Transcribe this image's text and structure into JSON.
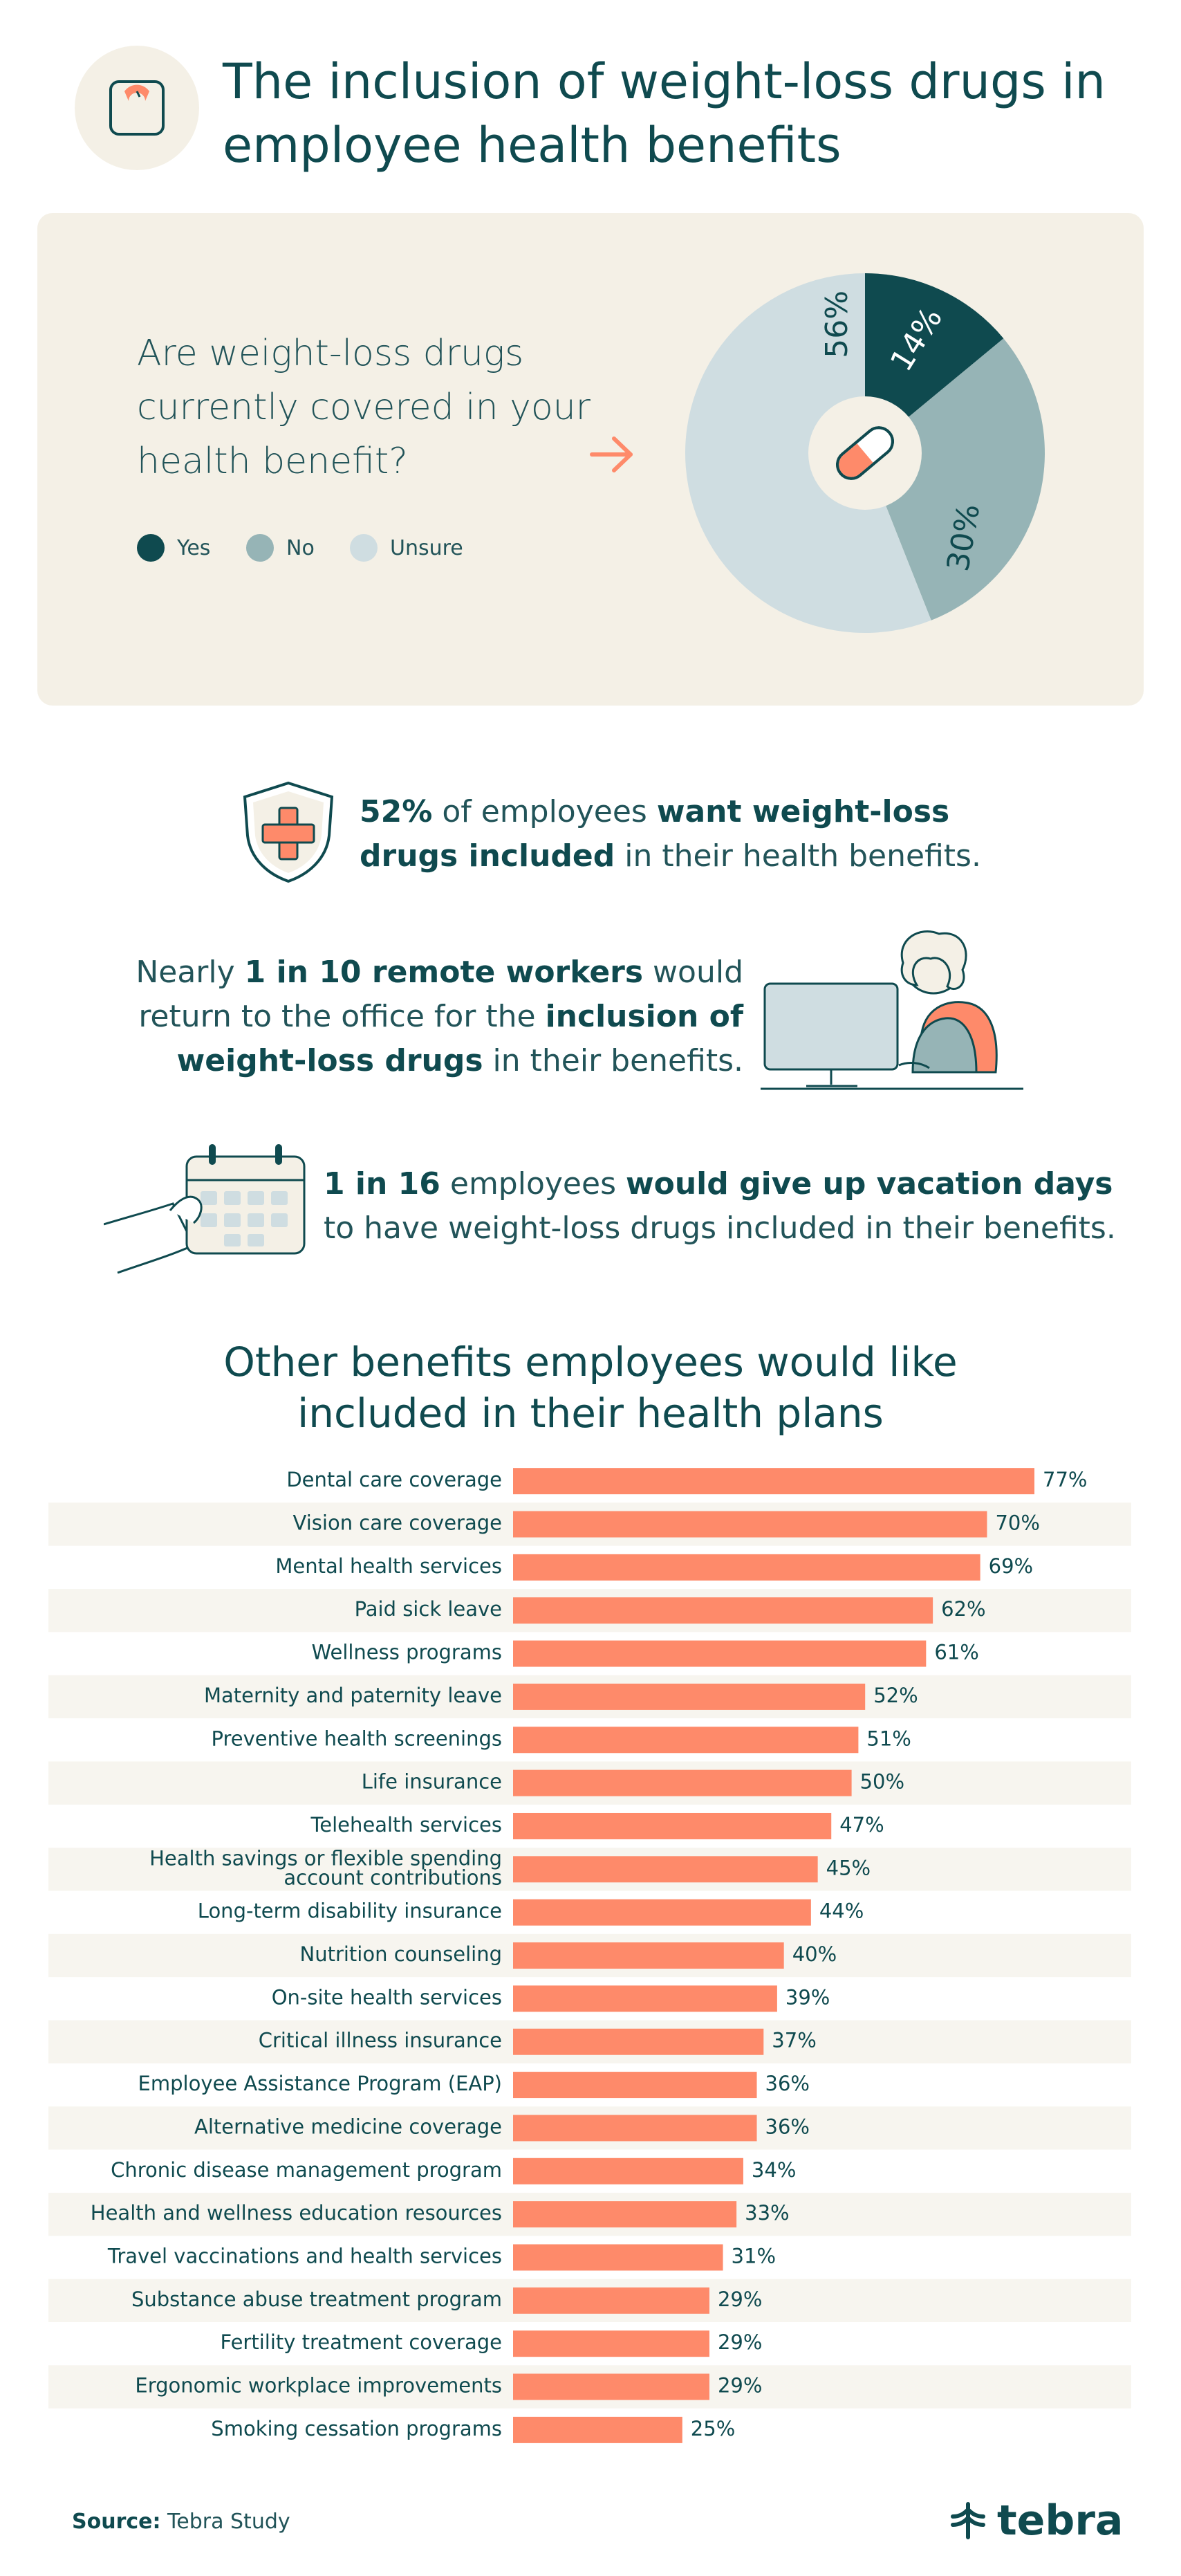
{
  "header": {
    "title": "The inclusion of weight-loss drugs in employee health benefits",
    "icon": "scale-icon"
  },
  "survey": {
    "question": "Are weight-loss drugs currently covered in your health benefit?",
    "legend": [
      {
        "label": "Yes",
        "color": "#0f4a4f"
      },
      {
        "label": "No",
        "color": "#96b4b6"
      },
      {
        "label": "Unsure",
        "color": "#cfdde1"
      }
    ]
  },
  "stats": {
    "stat1": {
      "highlight1": "52%",
      "text1": " of employees ",
      "highlight2": "want weight-loss drugs included",
      "text2": " in their health benefits."
    },
    "stat2": {
      "text1": "Nearly ",
      "highlight1": "1 in 10 remote workers",
      "text2": " would return to the office for the ",
      "highlight2": "inclusion of weight-loss drugs",
      "text3": " in their benefits."
    },
    "stat3": {
      "highlight1": "1 in 16",
      "text1": " employees ",
      "highlight2": "would give up vacation days",
      "text2": " to have weight-loss drugs included in their benefits."
    }
  },
  "footer": {
    "source_label": "Source:",
    "source_value": " Tebra Study",
    "brand": "tebra"
  },
  "colors": {
    "primary": "#0f4a4f",
    "accent": "#fe8a6a",
    "card_bg": "#f4f0e6",
    "row_stripe": "#f7f5ef"
  },
  "chart_data": [
    {
      "type": "pie",
      "labels": [
        "Yes",
        "No",
        "Unsure"
      ],
      "values": [
        14,
        30,
        56
      ],
      "value_labels": [
        "14%",
        "30%",
        "56%"
      ],
      "colors": [
        "#0f4a4f",
        "#96b4b6",
        "#cfdde1"
      ],
      "center_icon": "pill-icon"
    },
    {
      "type": "bar",
      "title": "Other benefits employees would like included in their health plans",
      "categories": [
        "Dental care coverage",
        "Vision care coverage",
        "Mental health services",
        "Paid sick leave",
        "Wellness programs",
        "Maternity and paternity leave",
        "Preventive health screenings",
        "Life insurance",
        "Telehealth services",
        "Health savings or flexible spending account contributions",
        "Long-term disability insurance",
        "Nutrition counseling",
        "On-site health services",
        "Critical illness insurance",
        "Employee Assistance Program (EAP)",
        "Alternative medicine coverage",
        "Chronic disease management program",
        "Health and wellness education resources",
        "Travel vaccinations and health services",
        "Substance abuse treatment program",
        "Fertility treatment coverage",
        "Ergonomic workplace improvements",
        "Smoking cessation programs"
      ],
      "values": [
        77,
        70,
        69,
        62,
        61,
        52,
        51,
        50,
        47,
        45,
        44,
        40,
        39,
        37,
        36,
        36,
        34,
        33,
        31,
        29,
        29,
        29,
        25
      ],
      "value_labels": [
        "77%",
        "70%",
        "69%",
        "62%",
        "61%",
        "52%",
        "51%",
        "50%",
        "47%",
        "45%",
        "44%",
        "40%",
        "39%",
        "37%",
        "36%",
        "36%",
        "34%",
        "33%",
        "31%",
        "29%",
        "29%",
        "29%",
        "25%"
      ],
      "unit": "%",
      "color": "#fe8a6a"
    }
  ]
}
